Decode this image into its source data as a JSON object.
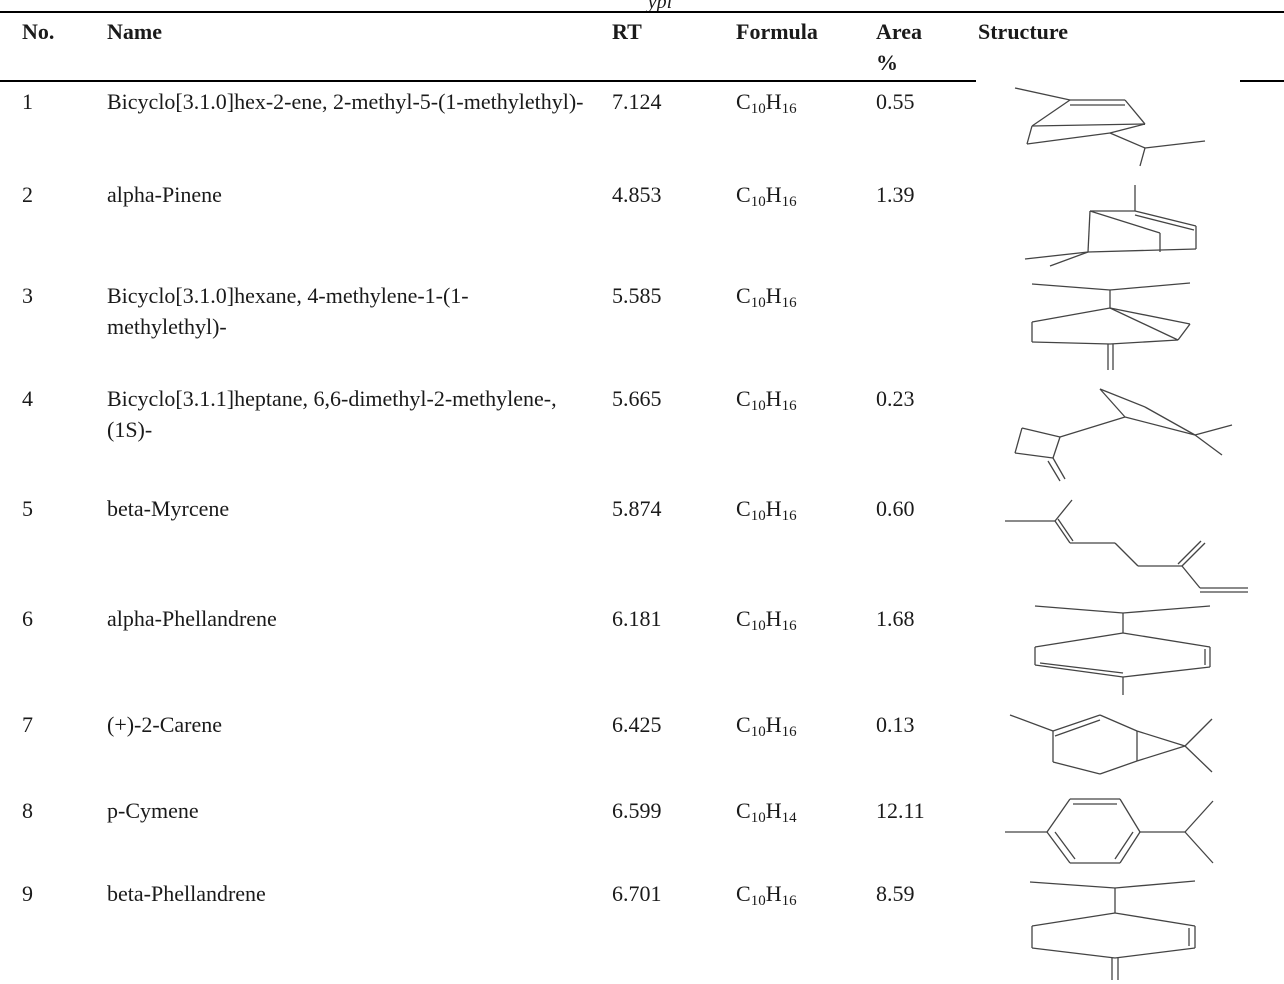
{
  "caption_fragment": "ypi",
  "headers": {
    "no": "No.",
    "name": "Name",
    "rt": "RT",
    "formula": "Formula",
    "area_line1": "Area",
    "area_line2": "%",
    "structure": "Structure"
  },
  "rows": [
    {
      "no": "1",
      "name": "Bicyclo[3.1.0]hex-2-ene, 2-methyl-5-(1-methylethyl)-",
      "rt": "7.124",
      "formula": {
        "c": "C",
        "c_sub": "10",
        "h": "H",
        "h_sub": "16"
      },
      "area": "0.55",
      "structure_icon": "thujene-structure-icon"
    },
    {
      "no": "2",
      "name": "alpha-Pinene",
      "rt": "4.853",
      "formula": {
        "c": "C",
        "c_sub": "10",
        "h": "H",
        "h_sub": "16"
      },
      "area": "1.39",
      "structure_icon": "alpha-pinene-structure-icon"
    },
    {
      "no": "3",
      "name": "Bicyclo[3.1.0]hexane, 4-methylene-1-(1-methylethyl)-",
      "rt": "5.585",
      "formula": {
        "c": "C",
        "c_sub": "10",
        "h": "H",
        "h_sub": "16"
      },
      "area": "",
      "structure_icon": "sabinene-structure-icon"
    },
    {
      "no": "4",
      "name": "Bicyclo[3.1.1]heptane, 6,6-dimethyl-2-methylene-, (1S)-",
      "rt": "5.665",
      "formula": {
        "c": "C",
        "c_sub": "10",
        "h": "H",
        "h_sub": "16"
      },
      "area": "0.23",
      "structure_icon": "beta-pinene-structure-icon"
    },
    {
      "no": "5",
      "name": "beta-Myrcene",
      "rt": "5.874",
      "formula": {
        "c": "C",
        "c_sub": "10",
        "h": "H",
        "h_sub": "16"
      },
      "area": "0.60",
      "structure_icon": "myrcene-structure-icon"
    },
    {
      "no": "6",
      "name": "alpha-Phellandrene",
      "rt": "6.181",
      "formula": {
        "c": "C",
        "c_sub": "10",
        "h": "H",
        "h_sub": "16"
      },
      "area": "1.68",
      "structure_icon": "alpha-phellandrene-structure-icon"
    },
    {
      "no": "7",
      "name": "(+)-2-Carene",
      "rt": "6.425",
      "formula": {
        "c": "C",
        "c_sub": "10",
        "h": "H",
        "h_sub": "16"
      },
      "area": "0.13",
      "structure_icon": "carene-structure-icon"
    },
    {
      "no": "8",
      "name": "p-Cymene",
      "rt": "6.599",
      "formula": {
        "c": "C",
        "c_sub": "10",
        "h": "H",
        "h_sub": "14"
      },
      "area": "12.11",
      "structure_icon": "p-cymene-structure-icon"
    },
    {
      "no": "9",
      "name": "beta-Phellandrene",
      "rt": "6.701",
      "formula": {
        "c": "C",
        "c_sub": "10",
        "h": "H",
        "h_sub": "16"
      },
      "area": "8.59",
      "structure_icon": "beta-phellandrene-structure-icon"
    }
  ]
}
